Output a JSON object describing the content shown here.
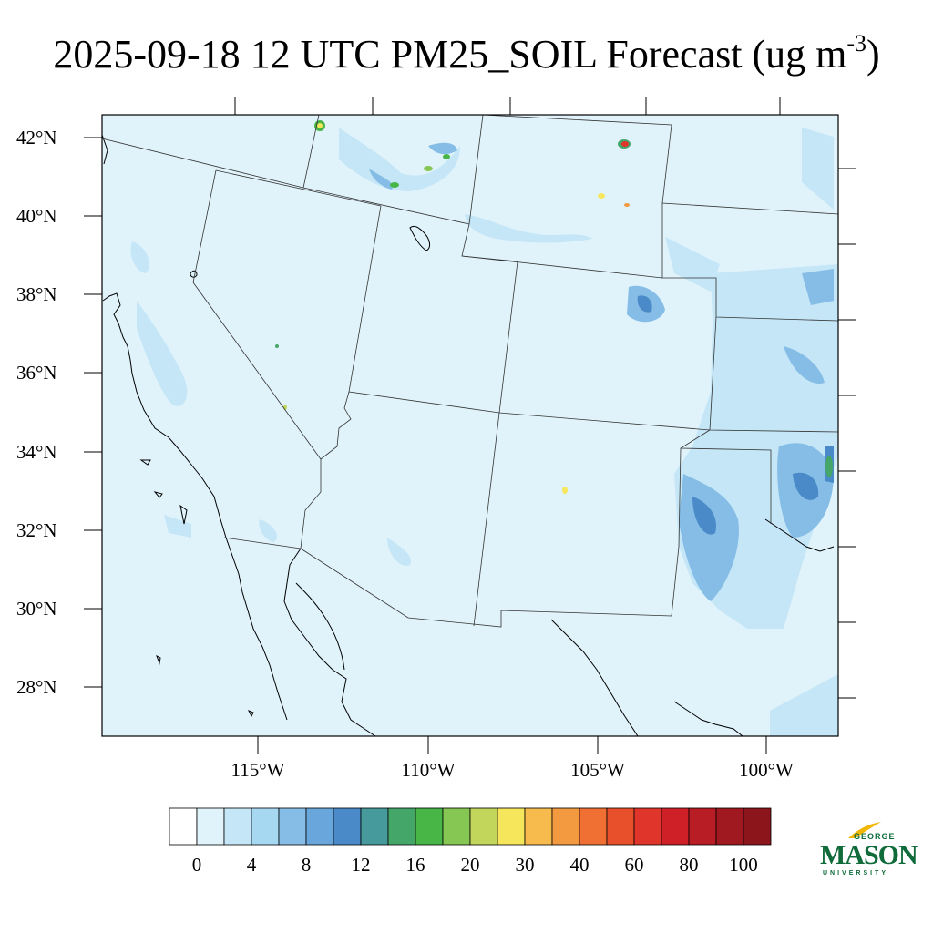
{
  "title": {
    "main": "2025-09-18 12 UTC PM25_SOIL Forecast (ug m",
    "sup": "-3",
    "end": ")"
  },
  "lat_labels": [
    "42°N",
    "40°N",
    "38°N",
    "36°N",
    "34°N",
    "32°N",
    "30°N",
    "28°N"
  ],
  "lon_labels": [
    "115°W",
    "110°W",
    "105°W",
    "100°W"
  ],
  "colorbar": {
    "tick_labels": [
      "0",
      "4",
      "8",
      "12",
      "16",
      "20",
      "30",
      "40",
      "60",
      "80",
      "100"
    ],
    "colors": [
      "#ffffff",
      "#e0f3fb",
      "#c4e6f7",
      "#a6d8f2",
      "#85bde6",
      "#68a6dc",
      "#4a8ac8",
      "#479a9c",
      "#45a66a",
      "#48b646",
      "#86c652",
      "#c3d65c",
      "#f6e65c",
      "#f6bb4c",
      "#f39a40",
      "#ef7032",
      "#e8502c",
      "#e0352a",
      "#cf2028",
      "#b81c24",
      "#a11920",
      "#8c151b"
    ]
  },
  "logo": {
    "top": "GEORGE",
    "main": "MASON",
    "sub": "UNIVERSITY"
  },
  "colors": {
    "background_field": "#e0f3fb",
    "frame": "#000000"
  }
}
